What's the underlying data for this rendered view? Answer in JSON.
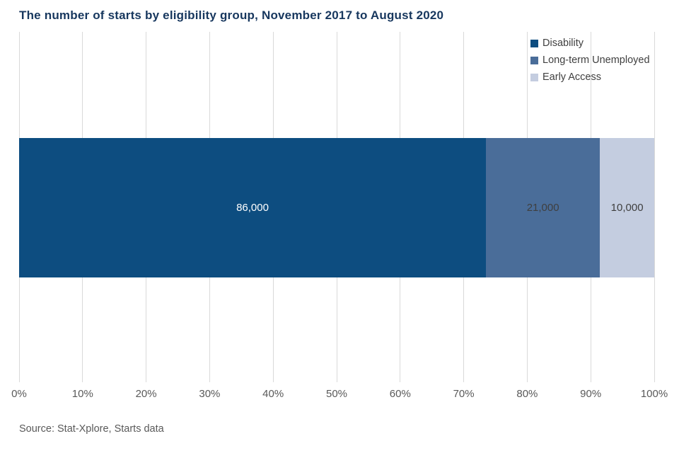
{
  "title": "The number of starts by eligibility  group, November 2017 to August 2020",
  "source": "Source: Stat-Xplore, Starts data",
  "chart_data": {
    "type": "bar",
    "orientation": "horizontal",
    "stacked": true,
    "title": "The number of starts by eligibility group, November 2017 to August 2020",
    "xlabel": "",
    "ylabel": "",
    "xlim": [
      0,
      100
    ],
    "grid": true,
    "legend_position": "top-right",
    "x_ticks": [
      "0%",
      "10%",
      "20%",
      "30%",
      "40%",
      "50%",
      "60%",
      "70%",
      "80%",
      "90%",
      "100%"
    ],
    "series": [
      {
        "name": "Disability",
        "value": 86000,
        "label": "86,000",
        "color": "#0d4d80",
        "label_color": "#ffffff"
      },
      {
        "name": "Long-term Unemployed",
        "value": 21000,
        "label": "21,000",
        "color": "#4a6d99",
        "label_color": "#3f3f3f"
      },
      {
        "name": "Early Access",
        "value": 10000,
        "label": "10,000",
        "color": "#c4cde0",
        "label_color": "#3f3f3f"
      }
    ]
  }
}
